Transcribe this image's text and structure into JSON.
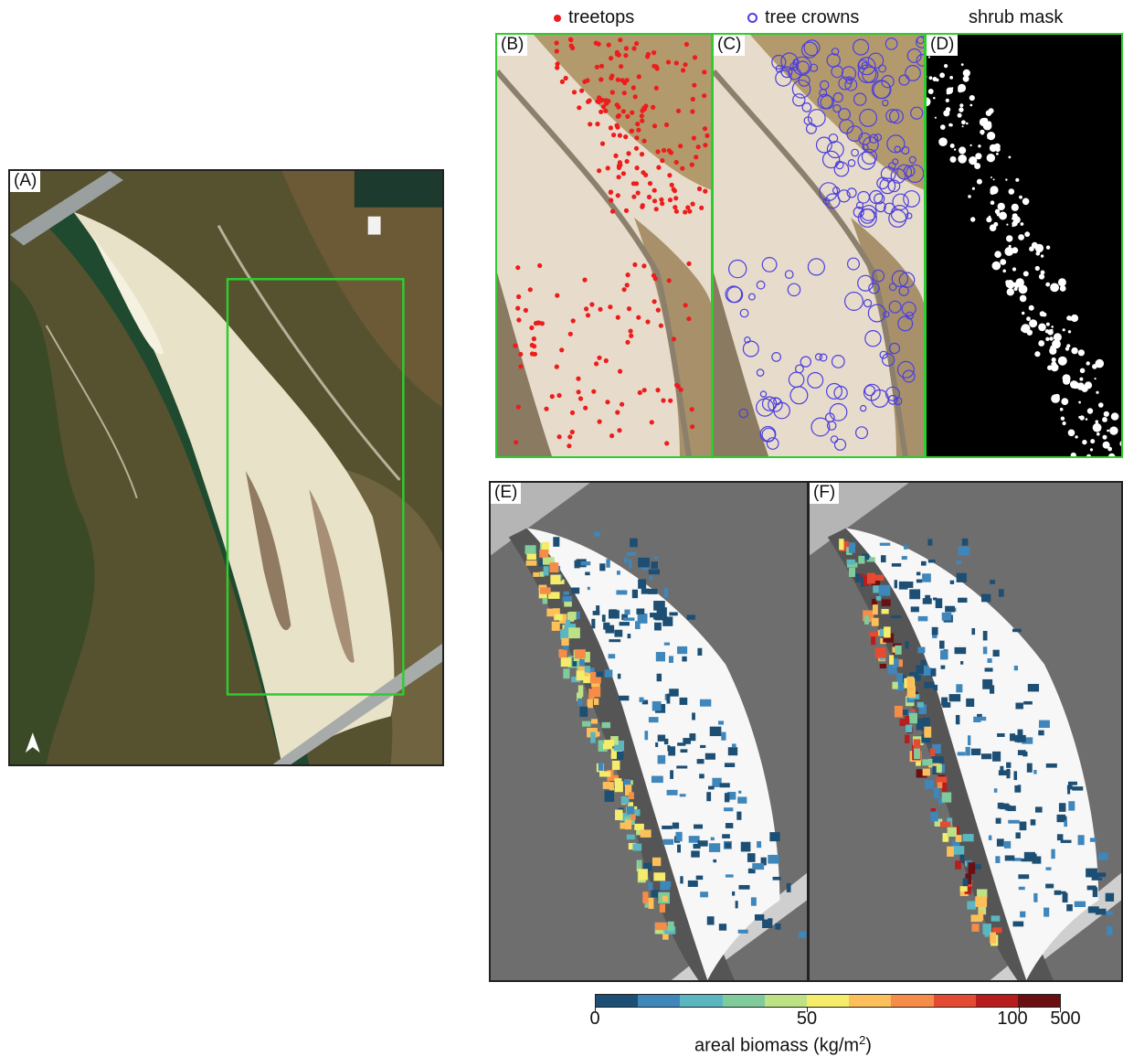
{
  "panel_labels": {
    "a": "(A)",
    "b": "(B)",
    "c": "(C)",
    "d": "(D)",
    "e": "(E)",
    "f": "(F)"
  },
  "legend": {
    "treetops": "treetops",
    "tree_crowns": "tree crowns",
    "shrub_mask": "shrub mask"
  },
  "colorbar": {
    "ticks": [
      "0",
      "50",
      "100",
      "500"
    ],
    "label_prefix": "areal biomass (kg/m",
    "label_sup": "2",
    "label_suffix": ")",
    "colors": [
      "#1d4e73",
      "#3f86bb",
      "#5bb6c1",
      "#7fcb9c",
      "#bde285",
      "#f4ec6a",
      "#fdbf5a",
      "#f58d48",
      "#e44b32",
      "#b81d1d",
      "#6a0f12"
    ]
  },
  "colors": {
    "extent_box": "#2ecc2e",
    "treetop": "#ee1c1c",
    "crown": "#4c3fe0"
  },
  "icons": {
    "north_arrow": "north-arrow-icon"
  }
}
